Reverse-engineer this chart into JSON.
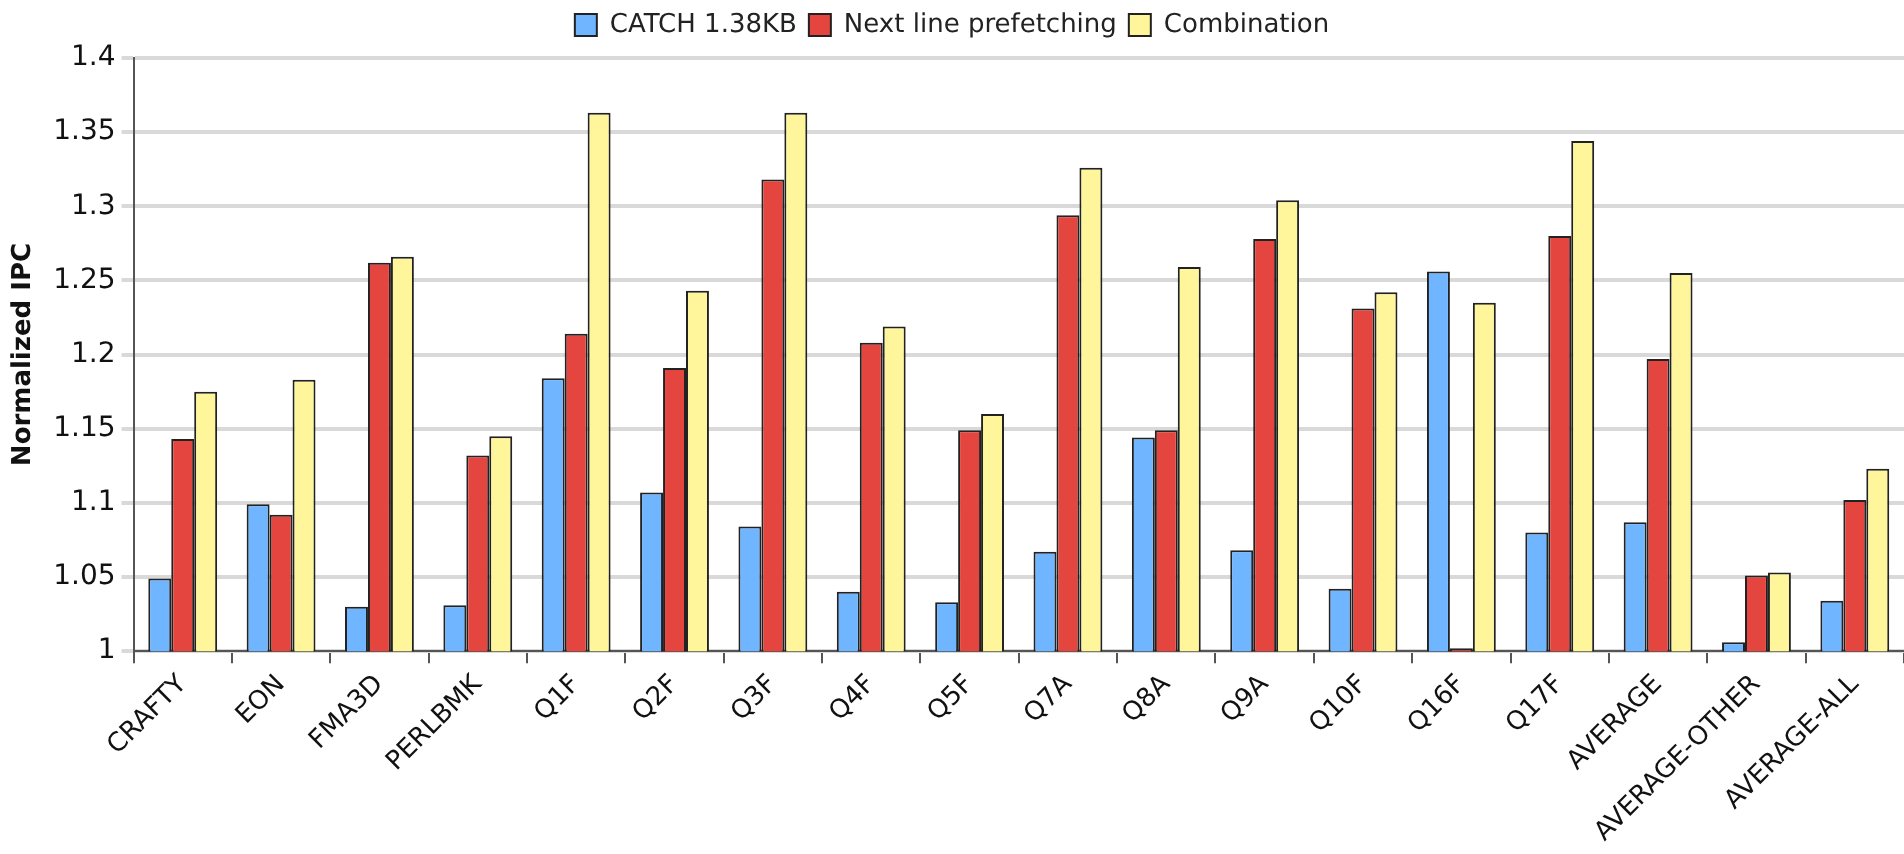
{
  "chart_data": {
    "type": "bar",
    "ylabel": "Normalized IPC",
    "categories": [
      "CRAFTY",
      "EON",
      "FMA3D",
      "PERLBMK",
      "Q1F",
      "Q2F",
      "Q3F",
      "Q4F",
      "Q5F",
      "Q7A",
      "Q8A",
      "Q9A",
      "Q10F",
      "Q16F",
      "Q17F",
      "AVERAGE",
      "AVERAGE-OTHER",
      "AVERAGE-ALL"
    ],
    "series": [
      {
        "name": "CATCH 1.38KB",
        "color": "#6fb5ff",
        "values": [
          1.049,
          1.099,
          1.03,
          1.031,
          1.184,
          1.107,
          1.084,
          1.04,
          1.033,
          1.067,
          1.144,
          1.068,
          1.042,
          1.256,
          1.08,
          1.087,
          1.006,
          1.034
        ]
      },
      {
        "name": "Next line prefetching",
        "color": "#e5453f",
        "values": [
          1.143,
          1.092,
          1.262,
          1.132,
          1.214,
          1.191,
          1.318,
          1.208,
          1.149,
          1.294,
          1.149,
          1.278,
          1.231,
          1.002,
          1.28,
          1.197,
          1.051,
          1.102
        ]
      },
      {
        "name": "Combination",
        "color": "#fff59a",
        "values": [
          1.175,
          1.183,
          1.266,
          1.145,
          1.363,
          1.243,
          1.363,
          1.219,
          1.16,
          1.326,
          1.259,
          1.304,
          1.242,
          1.235,
          1.344,
          1.255,
          1.053,
          1.123
        ]
      }
    ],
    "ylim": [
      1,
      1.4
    ],
    "yticks": [
      1,
      1.05,
      1.1,
      1.15,
      1.2,
      1.25,
      1.3,
      1.35,
      1.4
    ],
    "grid": "y",
    "legend": "top"
  }
}
